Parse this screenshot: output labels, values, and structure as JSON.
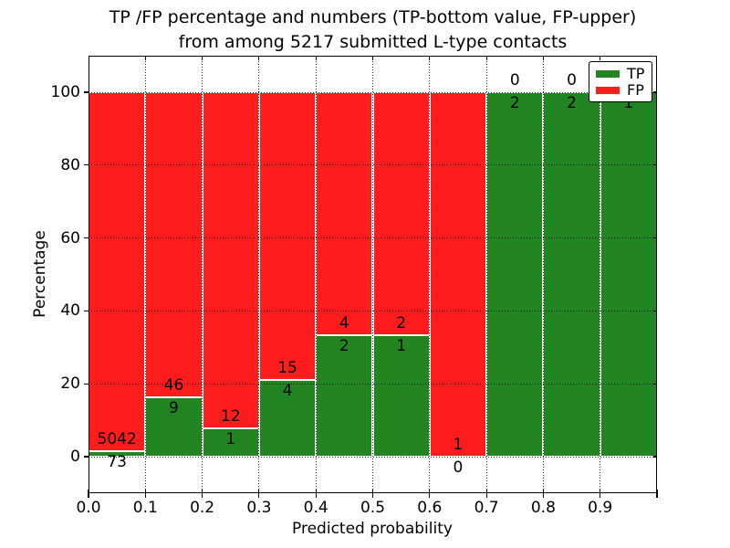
{
  "title": {
    "line1": "TP /FP percentage and numbers (TP-bottom value, FP-upper)",
    "line2": "from among 5217 submitted L-type contacts"
  },
  "axes": {
    "xlabel": "Predicted probability",
    "ylabel": "Percentage",
    "xticks": [
      "0.0",
      "0.1",
      "0.2",
      "0.3",
      "0.4",
      "0.5",
      "0.6",
      "0.7",
      "0.8",
      "0.9"
    ],
    "yticks": [
      "0",
      "20",
      "40",
      "60",
      "80",
      "100"
    ]
  },
  "legend": {
    "entries": [
      {
        "label": "TP",
        "color": "#218521"
      },
      {
        "label": "FP",
        "color": "#ff1c1c"
      }
    ]
  },
  "colors": {
    "tp_green": "#218521",
    "fp_red": "#ff1c1c",
    "grid": "#000000",
    "bar_edge": "#ffffff"
  },
  "annotations": {
    "fp_labels": [
      "5042",
      "46",
      "12",
      "15",
      "4",
      "2",
      "1",
      "0",
      "0",
      ""
    ],
    "tp_labels": [
      "73",
      "9",
      "1",
      "4",
      "2",
      "1",
      "0",
      "2",
      "2",
      "1"
    ]
  },
  "chart_data": {
    "type": "bar",
    "stacked": true,
    "normalized_to_percent": true,
    "title": "TP /FP percentage and numbers (TP-bottom value, FP-upper) from among 5217 submitted L-type contacts",
    "xlabel": "Predicted probability",
    "ylabel": "Percentage",
    "total_contacts": 5217,
    "x_bins": [
      [
        0.0,
        0.1
      ],
      [
        0.1,
        0.2
      ],
      [
        0.2,
        0.3
      ],
      [
        0.3,
        0.4
      ],
      [
        0.4,
        0.5
      ],
      [
        0.5,
        0.6
      ],
      [
        0.6,
        0.7
      ],
      [
        0.7,
        0.8
      ],
      [
        0.8,
        0.9
      ],
      [
        0.9,
        1.0
      ]
    ],
    "series": [
      {
        "name": "TP",
        "color": "#218521",
        "counts": [
          73,
          9,
          1,
          4,
          2,
          1,
          0,
          2,
          2,
          1
        ]
      },
      {
        "name": "FP",
        "color": "#ff1c1c",
        "counts": [
          5042,
          46,
          12,
          15,
          4,
          2,
          1,
          0,
          0,
          0
        ]
      }
    ],
    "tp_percent": [
      1.43,
      16.36,
      7.69,
      21.05,
      33.33,
      33.33,
      0,
      100,
      100,
      100
    ],
    "xlim": [
      0.0,
      1.0
    ],
    "ylim": [
      -10,
      110
    ],
    "grid": true,
    "grid_style": "dotted",
    "legend_position": "upper right"
  }
}
